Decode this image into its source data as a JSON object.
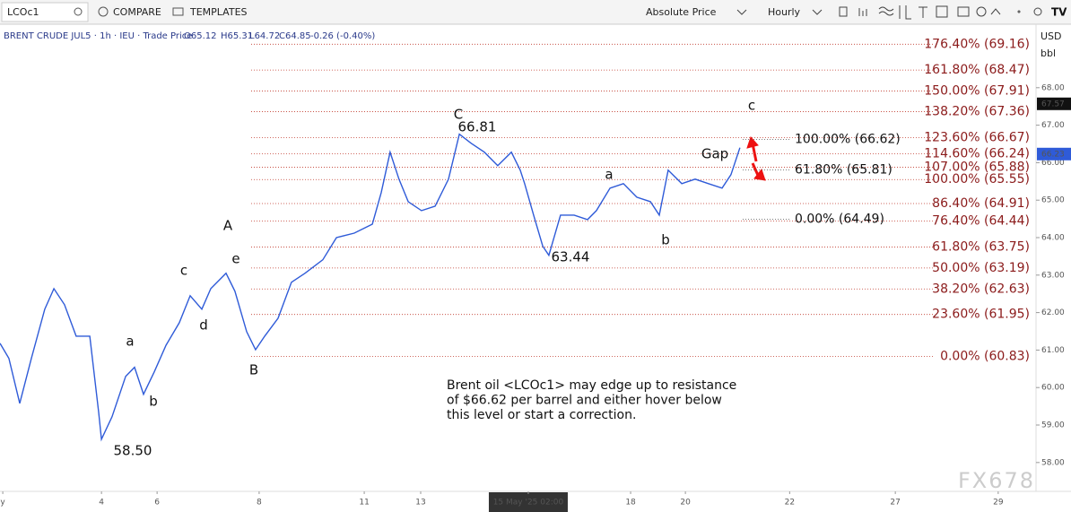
{
  "toolbar": {
    "symbol": "LCOc1",
    "compare": "COMPARE",
    "templates": "TEMPLATES",
    "scale_mode": "Absolute Price",
    "interval": "Hourly",
    "currency": "USD",
    "unit": "bbl"
  },
  "chart_data": {
    "type": "line",
    "legend": {
      "instrument": "BRENT CRUDE JUL5 · 1h · IEU · Trade Price",
      "open": "O65.12",
      "high": "H65.31",
      "low": "L64.72",
      "close": "C64.85",
      "change": "-0.26 (-0.40%)"
    },
    "color": "#2f5bd8",
    "x": [
      0,
      0.32,
      0.71,
      1.13,
      1.61,
      1.94,
      2.32,
      2.74,
      3.23,
      3.55,
      3.65,
      4.03,
      4.52,
      4.84,
      5.16,
      5.55,
      5.97,
      6.45,
      6.84,
      7.26,
      7.58,
      8.13,
      8.45,
      8.87,
      9.19,
      9.52,
      10.0,
      10.48,
      10.97,
      11.61,
      12.1,
      12.74,
      13.39,
      13.71,
      14.03,
      14.35,
      14.68,
      15.16,
      15.65,
      16.13,
      16.52,
      16.94,
      17.42,
      17.9,
      18.39,
      18.71,
      18.87,
      19.19,
      19.52,
      19.74,
      20.16,
      20.65,
      21.13,
      21.45,
      21.94,
      22.42,
      22.9,
      23.39,
      23.71,
      24.03,
      24.52,
      25.0,
      25.48,
      25.97,
      26.29,
      26.61
    ],
    "values": [
      61.18,
      60.78,
      59.58,
      60.78,
      62.09,
      62.64,
      62.21,
      61.37,
      61.37,
      59.34,
      58.62,
      59.22,
      60.3,
      60.54,
      59.82,
      60.42,
      61.13,
      61.73,
      62.45,
      62.09,
      62.64,
      63.05,
      62.57,
      61.49,
      61.01,
      61.37,
      61.85,
      62.81,
      63.05,
      63.41,
      64.0,
      64.12,
      64.36,
      65.2,
      66.28,
      65.56,
      64.96,
      64.72,
      64.84,
      65.56,
      66.76,
      66.52,
      66.28,
      65.92,
      66.28,
      65.8,
      65.44,
      64.6,
      63.77,
      63.53,
      64.6,
      64.6,
      64.48,
      64.72,
      65.32,
      65.44,
      65.08,
      64.96,
      64.6,
      65.8,
      65.44,
      65.56,
      65.44,
      65.32,
      65.68,
      66.4
    ],
    "xlim": [
      0,
      37.26
    ],
    "xticks": [
      {
        "value": 0.1,
        "label": "y"
      },
      {
        "value": 3.65,
        "label": "4"
      },
      {
        "value": 5.65,
        "label": "6"
      },
      {
        "value": 9.32,
        "label": "8"
      },
      {
        "value": 13.1,
        "label": "11"
      },
      {
        "value": 15.13,
        "label": "13"
      },
      {
        "value": 19.0,
        "label": "15 May '25  02:00"
      },
      {
        "value": 22.68,
        "label": "18"
      },
      {
        "value": 24.65,
        "label": "20"
      },
      {
        "value": 28.4,
        "label": "22"
      },
      {
        "value": 32.2,
        "label": "27"
      },
      {
        "value": 35.9,
        "label": "29"
      }
    ],
    "ylim": [
      57.23,
      69.67
    ],
    "yticks": [
      {
        "value": 58,
        "label": "58.00"
      },
      {
        "value": 59,
        "label": "59.00"
      },
      {
        "value": 60,
        "label": "60.00"
      },
      {
        "value": 61,
        "label": "61.00"
      },
      {
        "value": 62,
        "label": "62.00"
      },
      {
        "value": 63,
        "label": "63.00"
      },
      {
        "value": 64,
        "label": "64.00"
      },
      {
        "value": 65,
        "label": "65.00"
      },
      {
        "value": 66,
        "label": "66.00"
      },
      {
        "value": 67,
        "label": "67.00"
      },
      {
        "value": 68,
        "label": "68.00"
      }
    ],
    "price_tags": [
      67.57,
      66.23
    ],
    "fib_levels": [
      {
        "label": "176.40% (69.16)",
        "value": 69.16
      },
      {
        "label": "161.80% (68.47)",
        "value": 68.47
      },
      {
        "label": "150.00% (67.91)",
        "value": 67.91
      },
      {
        "label": "138.20% (67.36)",
        "value": 67.36
      },
      {
        "label": "123.60% (66.67)",
        "value": 66.67
      },
      {
        "label": "114.60% (66.24)",
        "value": 66.24
      },
      {
        "label": "107.00% (65.88)",
        "value": 65.88
      },
      {
        "label": "100.00% (65.55)",
        "value": 65.55
      },
      {
        "label": "86.40% (64.91)",
        "value": 64.91
      },
      {
        "label": "76.40% (64.44)",
        "value": 64.44
      },
      {
        "label": "61.80% (63.75)",
        "value": 63.75
      },
      {
        "label": "50.00% (63.19)",
        "value": 63.19
      },
      {
        "label": "38.20% (62.63)",
        "value": 62.63
      },
      {
        "label": "23.60% (61.95)",
        "value": 61.95
      },
      {
        "label": "0.00% (60.83)",
        "value": 60.83
      }
    ],
    "fib_levels_2": [
      {
        "label": "100.00% (66.62)",
        "value": 66.62
      },
      {
        "label": "61.80% (65.81)",
        "value": 65.81
      },
      {
        "label": "0.00% (64.49)",
        "value": 64.49
      }
    ],
    "annotations": [
      "A",
      "B",
      "C",
      "a",
      "b",
      "c",
      "d",
      "e",
      "a",
      "b",
      "c",
      "Gap",
      "58.50",
      "66.81",
      "63.44"
    ],
    "note": [
      "Brent oil <LCOc1> may edge up to resistance",
      "of $66.62 per barrel and either hover below",
      "this level or start a correction."
    ],
    "watermark": "FX678"
  }
}
